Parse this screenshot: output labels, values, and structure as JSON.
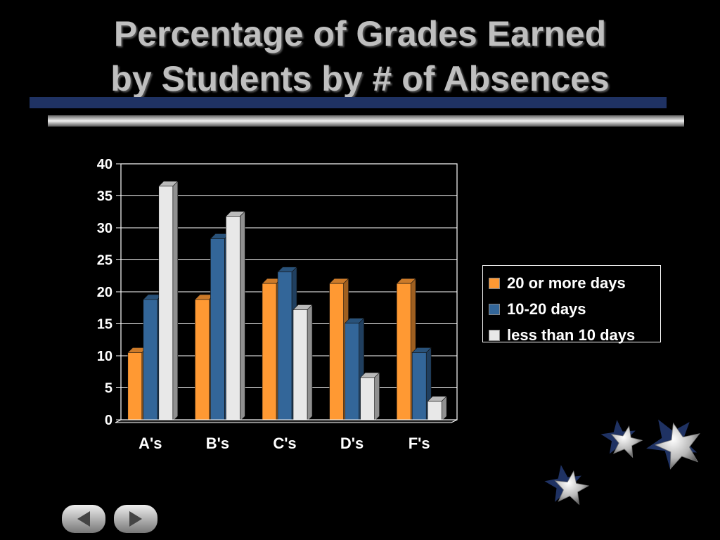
{
  "slide": {
    "title_line1": "Percentage of Grades Earned",
    "title_line2": "by Students by # of Absences"
  },
  "nav": {
    "prev_icon": "left-arrow-icon",
    "next_icon": "right-arrow-icon"
  },
  "decor": {
    "stars_icon": "stars-icon"
  },
  "chart_data": {
    "type": "bar",
    "title": "",
    "xlabel": "",
    "ylabel": "",
    "categories": [
      "A's",
      "B's",
      "C's",
      "D's",
      "F's"
    ],
    "ylim": [
      0,
      40
    ],
    "yticks": [
      0,
      5,
      10,
      15,
      20,
      25,
      30,
      35,
      40
    ],
    "grid": true,
    "legend_position": "right",
    "series": [
      {
        "name": "20 or more days",
        "color": "#ff9933",
        "values": [
          10.5,
          18.8,
          21.3,
          21.3,
          21.3
        ]
      },
      {
        "name": "10-20 days",
        "color": "#336699",
        "values": [
          18.8,
          28.3,
          23.1,
          15.1,
          10.5
        ]
      },
      {
        "name": "less than 10 days",
        "color": "#e8e8e8",
        "values": [
          36.5,
          31.8,
          17.2,
          6.6,
          2.9
        ]
      }
    ]
  }
}
